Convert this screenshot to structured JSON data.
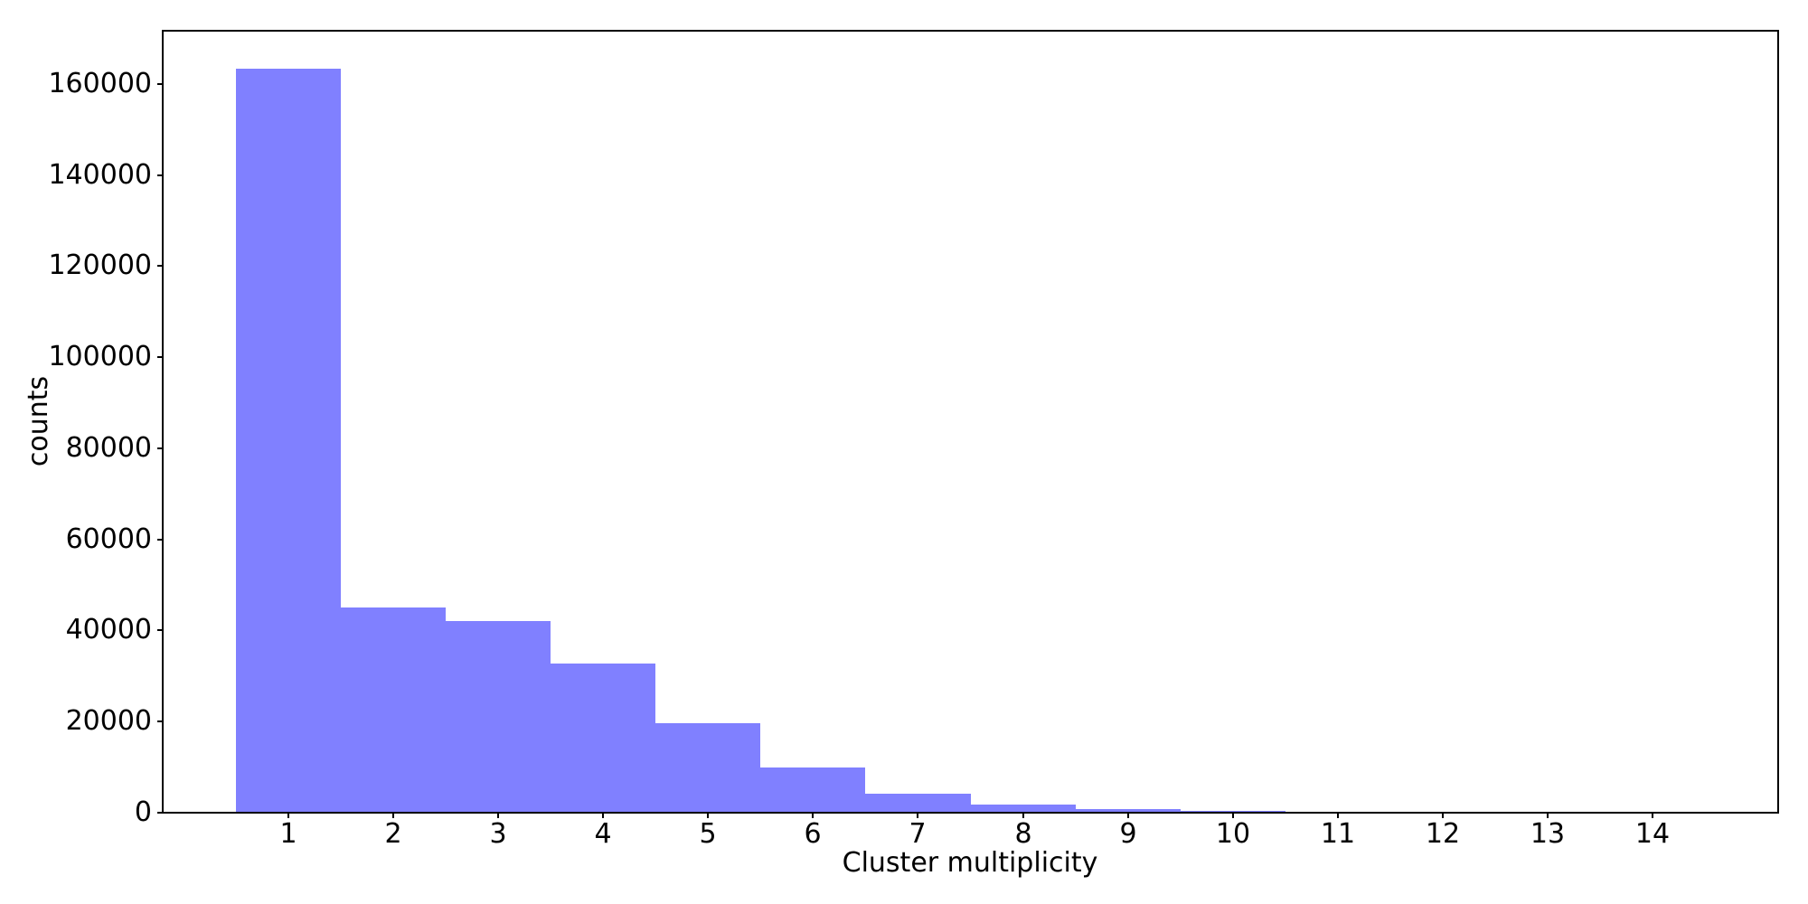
{
  "figure": {
    "background": "#ffffff",
    "axis_color": "#000000",
    "text_color": "#000000"
  },
  "chart_data": {
    "type": "bar",
    "title": "",
    "xlabel": "Cluster multiplicity",
    "ylabel": "counts",
    "categories": [
      1,
      2,
      3,
      4,
      5,
      6,
      7,
      8,
      9,
      10,
      11,
      12,
      13,
      14
    ],
    "values": [
      163400,
      45000,
      42000,
      32800,
      19700,
      9900,
      4100,
      1850,
      760,
      300,
      280,
      40,
      15,
      5
    ],
    "bar_width": 1,
    "bar_color": "#8080ff",
    "xlim": [
      -0.2,
      15.2
    ],
    "ylim": [
      0,
      171700
    ],
    "x_ticks": [
      1,
      2,
      3,
      4,
      5,
      6,
      7,
      8,
      9,
      10,
      11,
      12,
      13,
      14
    ],
    "x_tick_labels": [
      "1",
      "2",
      "3",
      "4",
      "5",
      "6",
      "7",
      "8",
      "9",
      "10",
      "11",
      "12",
      "13",
      "14"
    ],
    "y_ticks": [
      0,
      20000,
      40000,
      60000,
      80000,
      100000,
      120000,
      140000,
      160000
    ],
    "y_tick_labels": [
      "0",
      "20000",
      "40000",
      "60000",
      "80000",
      "100000",
      "120000",
      "140000",
      "160000"
    ],
    "grid": false,
    "legend": null
  }
}
